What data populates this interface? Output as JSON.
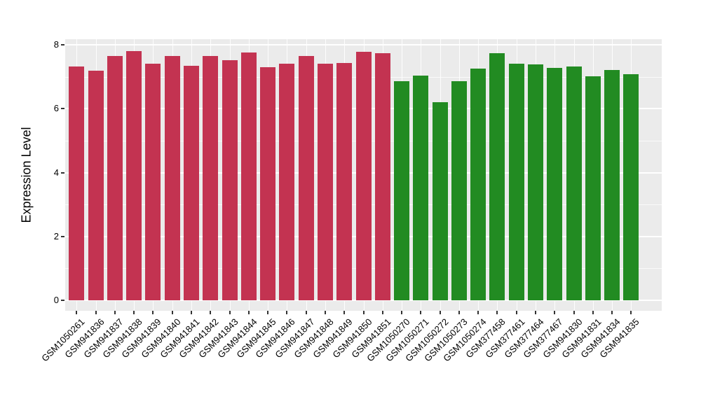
{
  "chart_data": {
    "type": "bar",
    "title": "",
    "xlabel": "",
    "ylabel": "Expression Level",
    "ylim": [
      0,
      8
    ],
    "yticks_major": [
      0,
      2,
      4,
      6,
      8
    ],
    "yticks_minor": [
      1,
      3,
      5,
      7
    ],
    "grid": "on",
    "legend": "none",
    "categories": [
      "GSM1050261",
      "GSM941836",
      "GSM941837",
      "GSM941838",
      "GSM941839",
      "GSM941840",
      "GSM941841",
      "GSM941842",
      "GSM941843",
      "GSM941844",
      "GSM941845",
      "GSM941846",
      "GSM941847",
      "GSM941848",
      "GSM941849",
      "GSM941850",
      "GSM941851",
      "GSM1050270",
      "GSM1050271",
      "GSM1050272",
      "GSM1050273",
      "GSM1050274",
      "GSM377458",
      "GSM377461",
      "GSM377464",
      "GSM377467",
      "GSM941830",
      "GSM941831",
      "GSM941834",
      "GSM941835"
    ],
    "values": [
      7.33,
      7.18,
      7.66,
      7.8,
      7.41,
      7.66,
      7.35,
      7.66,
      7.51,
      7.77,
      7.3,
      7.4,
      7.64,
      7.4,
      7.44,
      7.79,
      7.74,
      6.85,
      7.04,
      6.2,
      6.85,
      7.25,
      7.73,
      7.41,
      7.39,
      7.27,
      7.33,
      7.02,
      7.21,
      7.09
    ],
    "groups": [
      0,
      0,
      0,
      0,
      0,
      0,
      0,
      0,
      0,
      0,
      0,
      0,
      0,
      0,
      0,
      0,
      0,
      1,
      1,
      1,
      1,
      1,
      1,
      1,
      1,
      1,
      1,
      1,
      1,
      1
    ],
    "group_colors": [
      "#C33351",
      "#228B22"
    ]
  },
  "colors": {
    "panel_background": "#EBEBEB",
    "page_background": "#FFFFFF",
    "grid_major": "#FFFFFF",
    "tick_mark": "#333333",
    "text": "#000000"
  }
}
